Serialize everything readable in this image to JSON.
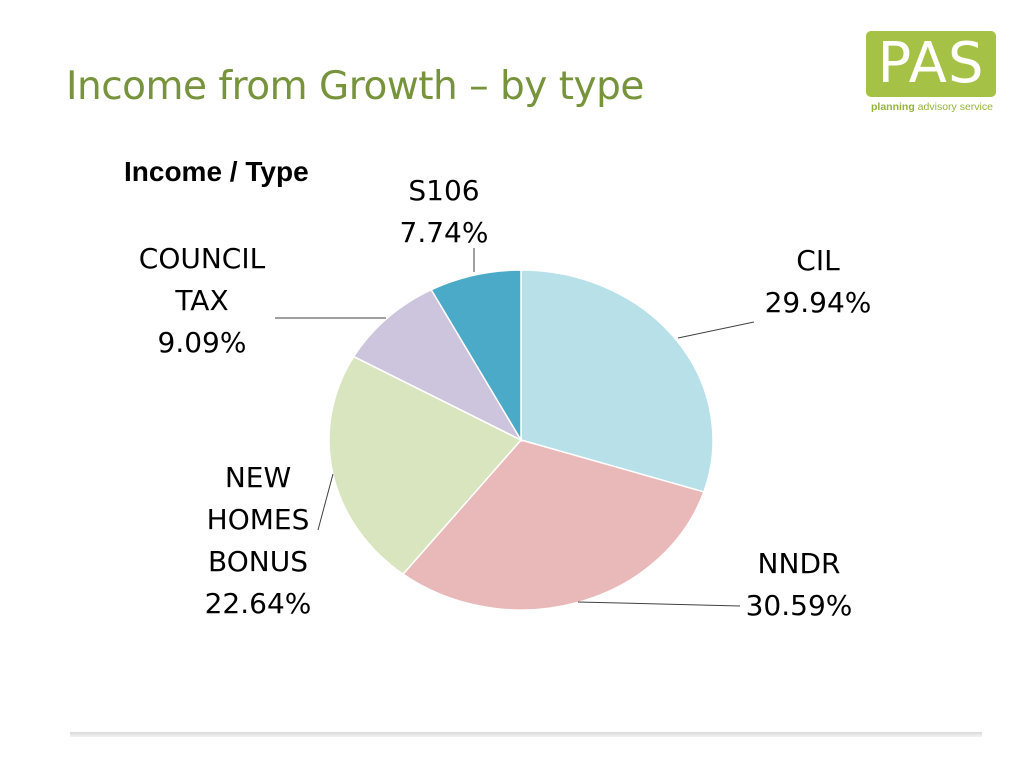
{
  "slide": {
    "title": "Income from Growth – by type"
  },
  "logo": {
    "text": "PAS",
    "subtitle_bold": "planning",
    "subtitle_rest": " advisory service",
    "color": "#a5c246"
  },
  "chart_data": {
    "type": "pie",
    "title": "Income / Type",
    "legend": "none",
    "slices": [
      {
        "name": "CIL",
        "value": 29.94,
        "label_lines": [
          "CIL",
          "29.94%"
        ],
        "color": "#b7e0e8"
      },
      {
        "name": "NNDR",
        "value": 30.59,
        "label_lines": [
          "NNDR",
          "30.59%"
        ],
        "color": "#e8b9b8"
      },
      {
        "name": "NEW HOMES BONUS",
        "value": 22.64,
        "label_lines": [
          "NEW",
          "HOMES",
          "BONUS",
          "22.64%"
        ],
        "color": "#d8e5bf"
      },
      {
        "name": "COUNCIL TAX",
        "value": 9.09,
        "label_lines": [
          "COUNCIL",
          "TAX",
          "9.09%"
        ],
        "color": "#cdc4de"
      },
      {
        "name": "S106",
        "value": 7.74,
        "label_lines": [
          "S106",
          "7.74%"
        ],
        "color": "#4aaac8"
      }
    ]
  }
}
